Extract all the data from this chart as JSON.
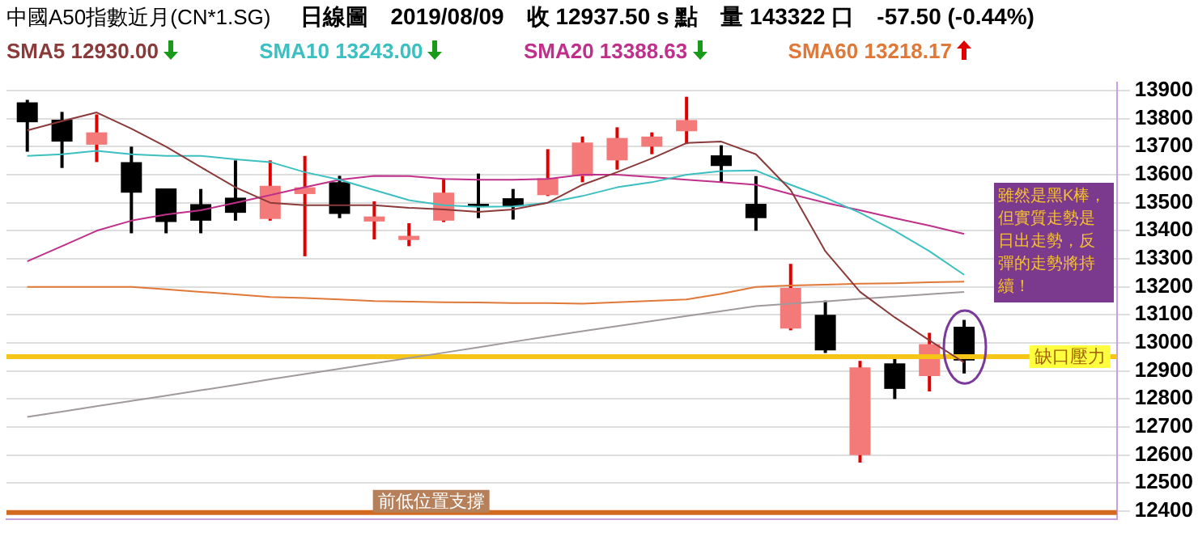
{
  "chart_data": {
    "type": "candlestick",
    "title": "中國A50指數近月(CN*1.SG)",
    "subtitle": "日線圖　2019/08/09　收 12937.50 s 點　量 143322 口　-57.50 (-0.44%)",
    "categories": [
      null,
      null,
      null,
      null,
      null,
      null,
      null,
      null,
      null,
      null,
      null,
      null,
      null,
      null,
      null,
      null,
      null,
      null,
      null,
      null,
      null,
      null,
      null,
      null,
      null,
      null,
      null,
      null
    ],
    "ohlc": [
      [
        13858,
        13867,
        13682,
        13787
      ],
      [
        13796,
        13824,
        13624,
        13718
      ],
      [
        13707,
        13815,
        13645,
        13751
      ],
      [
        13645,
        13700,
        13391,
        13536
      ],
      [
        13551,
        13551,
        13391,
        13431
      ],
      [
        13495,
        13549,
        13391,
        13436
      ],
      [
        13518,
        13651,
        13436,
        13464
      ],
      [
        13442,
        13651,
        13436,
        13560
      ],
      [
        13531,
        13667,
        13309,
        13555
      ],
      [
        13573,
        13596,
        13445,
        13460
      ],
      [
        13433,
        13505,
        13369,
        13451
      ],
      [
        13367,
        13427,
        13345,
        13382
      ],
      [
        13436,
        13587,
        13431,
        13536
      ],
      [
        13496,
        13604,
        13445,
        13485
      ],
      [
        13516,
        13549,
        13440,
        13487
      ],
      [
        13527,
        13691,
        13524,
        13587
      ],
      [
        13595,
        13736,
        13573,
        13715
      ],
      [
        13651,
        13769,
        13618,
        13731
      ],
      [
        13700,
        13751,
        13673,
        13736
      ],
      [
        13755,
        13878,
        13709,
        13795
      ],
      [
        13669,
        13705,
        13573,
        13631
      ],
      [
        13496,
        13595,
        13400,
        13445
      ],
      [
        13051,
        13282,
        13045,
        13196
      ],
      [
        13100,
        13151,
        12964,
        12973
      ],
      [
        12600,
        12936,
        12573,
        12913
      ],
      [
        12927,
        12945,
        12800,
        12836
      ],
      [
        12882,
        13036,
        12827,
        12996
      ],
      [
        13058,
        13082,
        12891,
        12937.5
      ]
    ],
    "series": [
      {
        "name": "SMA5 12930.00",
        "color": "#8b3a3a",
        "type": "line",
        "values": [
          13758,
          13791,
          13822,
          13764,
          13700,
          13627,
          13555,
          13500,
          13491,
          13491,
          13491,
          13482,
          13476,
          13467,
          13476,
          13500,
          13564,
          13609,
          13658,
          13713,
          13718,
          13673,
          13545,
          13327,
          13182,
          13091,
          13009,
          12930
        ]
      },
      {
        "name": "SMA10 13243.00",
        "color": "#3cbfc0",
        "type": "line",
        "values": [
          13667,
          13673,
          13685,
          13673,
          13667,
          13667,
          13655,
          13645,
          13609,
          13582,
          13545,
          13509,
          13491,
          13485,
          13487,
          13500,
          13524,
          13555,
          13573,
          13600,
          13613,
          13615,
          13564,
          13518,
          13464,
          13400,
          13327,
          13243
        ]
      },
      {
        "name": "SMA20 13388.63",
        "color": "#c0308a",
        "type": "line",
        "values": [
          13291,
          13345,
          13400,
          13436,
          13458,
          13473,
          13500,
          13527,
          13555,
          13582,
          13596,
          13595,
          13585,
          13582,
          13582,
          13585,
          13600,
          13600,
          13591,
          13582,
          13573,
          13564,
          13531,
          13500,
          13473,
          13445,
          13418,
          13388.63
        ]
      },
      {
        "name": "SMA60 13218.17",
        "color": "#e07838",
        "type": "line",
        "values": [
          13200,
          13200,
          13200,
          13200,
          13191,
          13182,
          13173,
          13164,
          13160,
          13155,
          13149,
          13147,
          13145,
          13144,
          13142,
          13142,
          13140,
          13145,
          13150,
          13155,
          13175,
          13200,
          13205,
          13208,
          13211,
          13213,
          13216,
          13218.17
        ]
      },
      {
        "color": "#a09a9a",
        "type": "line",
        "values": [
          12736,
          12755,
          12774,
          12793,
          12812,
          12831,
          12850,
          12870,
          12889,
          12908,
          12927,
          12946,
          12965,
          12984,
          13004,
          13023,
          13042,
          13060,
          13078,
          13096,
          13113,
          13131,
          13140,
          13148,
          13157,
          13165,
          13174,
          13182
        ]
      }
    ],
    "ylim": [
      12370,
      13930
    ],
    "yticks": [
      12400,
      12500,
      12600,
      12700,
      12800,
      12900,
      13000,
      13100,
      13200,
      13300,
      13400,
      13500,
      13600,
      13700,
      13800,
      13900
    ],
    "grid": "y",
    "legend": "top",
    "tick_labels": "y",
    "ref_lines": [
      {
        "axis": "y",
        "value": 12951,
        "label": "缺口壓力",
        "color": "#f5c518"
      },
      {
        "axis": "y",
        "value": 12395,
        "label": "前低位置支撐",
        "color": "#d2691e"
      }
    ],
    "annotations": [
      "雖然是黑K棒，但實質走勢是日出走勢，反彈的走勢將持續！"
    ]
  }
}
